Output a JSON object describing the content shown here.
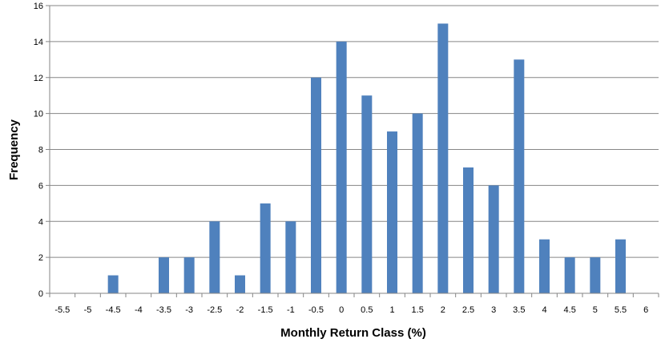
{
  "chart_data": {
    "type": "bar",
    "title": "",
    "xlabel": "Monthly Return Class (%)",
    "ylabel": "Frequency",
    "categories": [
      "-5.5",
      "-5",
      "-4.5",
      "-4",
      "-3.5",
      "-3",
      "-2.5",
      "-2",
      "-1.5",
      "-1",
      "-0.5",
      "0",
      "0.5",
      "1",
      "1.5",
      "2",
      "2.5",
      "3",
      "3.5",
      "4",
      "4.5",
      "5",
      "5.5",
      "6"
    ],
    "values": [
      0,
      0,
      1,
      0,
      2,
      2,
      4,
      1,
      5,
      4,
      12,
      14,
      11,
      9,
      10,
      15,
      7,
      6,
      13,
      3,
      2,
      2,
      3,
      0
    ],
    "ylim": [
      0,
      16
    ],
    "yticks": [
      "0",
      "2",
      "4",
      "6",
      "8",
      "10",
      "12",
      "14",
      "16"
    ],
    "grid": "horizontal",
    "legend": "none",
    "colors": {
      "bar": "#4f81bd",
      "grid": "#868686",
      "axis": "#868686"
    }
  }
}
